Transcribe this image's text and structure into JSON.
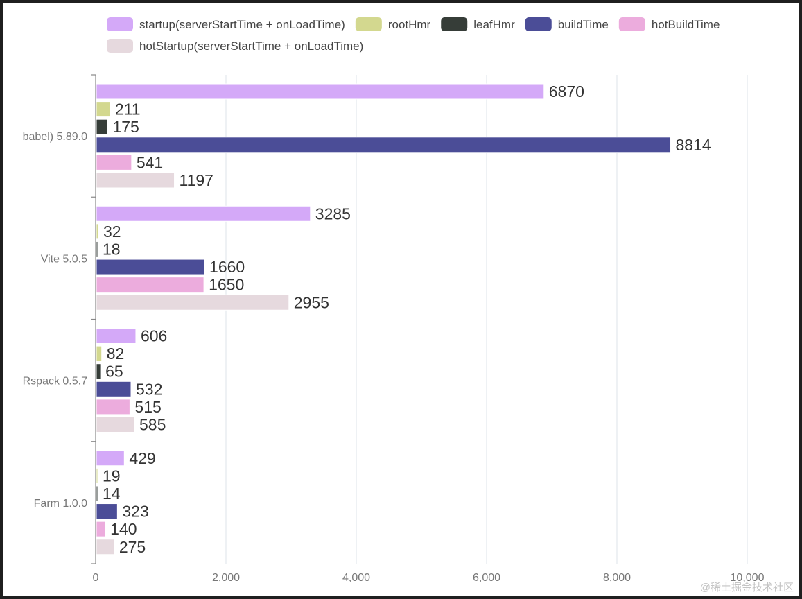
{
  "chart_data": {
    "type": "bar",
    "orientation": "horizontal",
    "categories": [
      "babel) 5.89.0",
      "Vite 5.0.5",
      "Rspack 0.5.7",
      "Farm 1.0.0"
    ],
    "series": [
      {
        "name": "startup(serverStartTime + onLoadTime)",
        "color": "#d4a9f8",
        "values": [
          6870,
          3285,
          606,
          429
        ]
      },
      {
        "name": "rootHmr",
        "color": "#d3d88f",
        "values": [
          211,
          32,
          82,
          19
        ]
      },
      {
        "name": "leafHmr",
        "color": "#363d38",
        "values": [
          175,
          18,
          65,
          14
        ]
      },
      {
        "name": "buildTime",
        "color": "#4b4d97",
        "values": [
          8814,
          1660,
          532,
          323
        ]
      },
      {
        "name": "hotBuildTime",
        "color": "#ecacdd",
        "values": [
          541,
          1650,
          515,
          140
        ]
      },
      {
        "name": "hotStartup(serverStartTime + onLoadTime)",
        "color": "#e6d9de",
        "values": [
          1197,
          2955,
          585,
          275
        ]
      }
    ],
    "xlim": [
      0,
      10000
    ],
    "xticks": [
      0,
      2000,
      4000,
      6000,
      8000,
      10000
    ],
    "xtick_labels": [
      "0",
      "2,000",
      "4,000",
      "6,000",
      "8,000",
      "10,000"
    ],
    "grid": true,
    "legend": "top",
    "data_labels": true
  },
  "watermark": "@稀土掘金技术社区"
}
